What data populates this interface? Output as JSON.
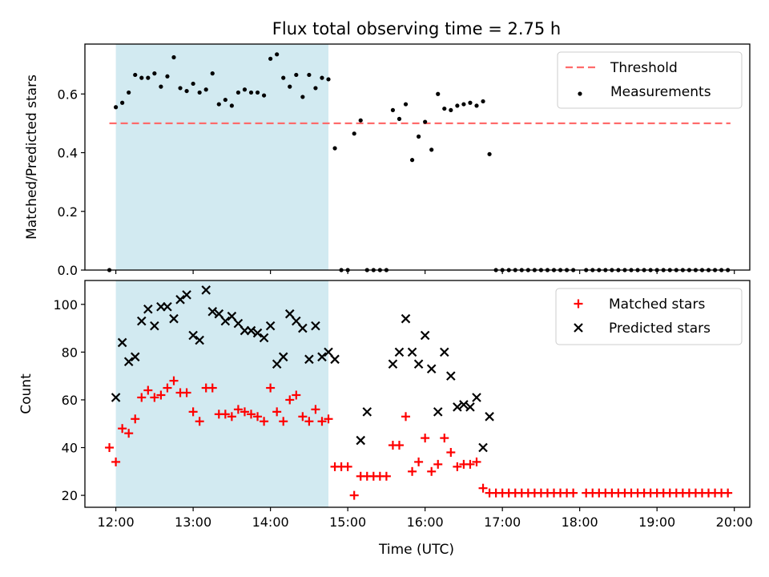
{
  "title": "Flux total observing time = 2.75 h",
  "colors": {
    "shade": "#add8e6",
    "threshold": "#ff6b6b",
    "measurements": "#000000",
    "matched": "#ff0000",
    "predicted": "#000000"
  },
  "chart_data": [
    {
      "type": "scatter",
      "ylabel": "Matched/Predicted stars",
      "ylim": [
        0,
        0.77
      ],
      "yticks": [
        0.0,
        0.2,
        0.4,
        0.6
      ],
      "ytick_labels": [
        "0.0",
        "0.2",
        "0.4",
        "0.6"
      ],
      "xlim": [
        "11:36",
        "20:12"
      ],
      "xticks": [
        "12:00",
        "13:00",
        "14:00",
        "15:00",
        "16:00",
        "17:00",
        "18:00",
        "19:00",
        "20:00"
      ],
      "shaded_span": [
        "12:00",
        "14:45"
      ],
      "legend": {
        "position": "top-right",
        "entries": [
          "Threshold",
          "Measurements"
        ]
      },
      "threshold": {
        "name": "Threshold",
        "y": 0.5,
        "x_range": [
          "11:55",
          "19:57"
        ],
        "style": "dashed"
      },
      "series": [
        {
          "name": "Measurements",
          "x": [
            "11:55",
            "12:00",
            "12:05",
            "12:10",
            "12:15",
            "12:20",
            "12:25",
            "12:30",
            "12:35",
            "12:40",
            "12:45",
            "12:50",
            "12:55",
            "13:00",
            "13:05",
            "13:10",
            "13:15",
            "13:20",
            "13:25",
            "13:30",
            "13:35",
            "13:40",
            "13:45",
            "13:50",
            "13:55",
            "14:00",
            "14:05",
            "14:10",
            "14:15",
            "14:20",
            "14:25",
            "14:30",
            "14:35",
            "14:40",
            "14:45",
            "14:50",
            "14:55",
            "15:00",
            "15:05",
            "15:10",
            "15:15",
            "15:20",
            "15:25",
            "15:30",
            "15:35",
            "15:40",
            "15:45",
            "15:50",
            "15:55",
            "16:00",
            "16:05",
            "16:10",
            "16:15",
            "16:20",
            "16:25",
            "16:30",
            "16:35",
            "16:40",
            "16:45",
            "16:50",
            "16:55",
            "17:00",
            "17:05",
            "17:10",
            "17:15",
            "17:20",
            "17:25",
            "17:30",
            "17:35",
            "17:40",
            "17:45",
            "17:50",
            "17:55",
            "18:05",
            "18:10",
            "18:15",
            "18:20",
            "18:25",
            "18:30",
            "18:35",
            "18:40",
            "18:45",
            "18:50",
            "18:55",
            "19:00",
            "19:05",
            "19:10",
            "19:15",
            "19:20",
            "19:25",
            "19:30",
            "19:35",
            "19:40",
            "19:45",
            "19:50",
            "19:55"
          ],
          "y": [
            0,
            0.555,
            0.57,
            0.605,
            0.665,
            0.655,
            0.655,
            0.67,
            0.625,
            0.66,
            0.725,
            0.62,
            0.61,
            0.635,
            0.605,
            0.615,
            0.67,
            0.565,
            0.58,
            0.56,
            0.605,
            0.615,
            0.605,
            0.605,
            0.595,
            0.72,
            0.735,
            0.655,
            0.625,
            0.665,
            0.59,
            0.665,
            0.62,
            0.655,
            0.65,
            0.415,
            0,
            0,
            0.465,
            0.51,
            0,
            0,
            0,
            0,
            0.545,
            0.515,
            0.565,
            0.375,
            0.455,
            0.505,
            0.41,
            0.6,
            0.55,
            0.545,
            0.56,
            0.565,
            0.57,
            0.56,
            0.575,
            0.395,
            0,
            0,
            0,
            0,
            0,
            0,
            0,
            0,
            0,
            0,
            0,
            0,
            0,
            0,
            0,
            0,
            0,
            0,
            0,
            0,
            0,
            0,
            0,
            0,
            0,
            0,
            0,
            0,
            0,
            0,
            0,
            0,
            0,
            0,
            0,
            0
          ]
        }
      ]
    },
    {
      "type": "scatter",
      "ylabel": "Count",
      "xlabel": "Time (UTC)",
      "ylim": [
        15,
        110
      ],
      "yticks": [
        20,
        40,
        60,
        80,
        100
      ],
      "ytick_labels": [
        "20",
        "40",
        "60",
        "80",
        "100"
      ],
      "xlim": [
        "11:36",
        "20:12"
      ],
      "xticks": [
        "12:00",
        "13:00",
        "14:00",
        "15:00",
        "16:00",
        "17:00",
        "18:00",
        "19:00",
        "20:00"
      ],
      "shaded_span": [
        "12:00",
        "14:45"
      ],
      "legend": {
        "position": "top-right",
        "entries": [
          "Matched stars",
          "Predicted stars"
        ]
      },
      "series": [
        {
          "name": "Matched stars",
          "marker": "plus",
          "x": [
            "11:55",
            "12:00",
            "12:05",
            "12:10",
            "12:15",
            "12:20",
            "12:25",
            "12:30",
            "12:35",
            "12:40",
            "12:45",
            "12:50",
            "12:55",
            "13:00",
            "13:05",
            "13:10",
            "13:15",
            "13:20",
            "13:25",
            "13:30",
            "13:35",
            "13:40",
            "13:45",
            "13:50",
            "13:55",
            "14:00",
            "14:05",
            "14:10",
            "14:15",
            "14:20",
            "14:25",
            "14:30",
            "14:35",
            "14:40",
            "14:45",
            "14:50",
            "14:55",
            "15:00",
            "15:05",
            "15:10",
            "15:15",
            "15:20",
            "15:25",
            "15:30",
            "15:35",
            "15:40",
            "15:45",
            "15:50",
            "15:55",
            "16:00",
            "16:05",
            "16:10",
            "16:15",
            "16:20",
            "16:25",
            "16:30",
            "16:35",
            "16:40",
            "16:45",
            "16:50",
            "16:55",
            "17:00",
            "17:05",
            "17:10",
            "17:15",
            "17:20",
            "17:25",
            "17:30",
            "17:35",
            "17:40",
            "17:45",
            "17:50",
            "17:55",
            "18:05",
            "18:10",
            "18:15",
            "18:20",
            "18:25",
            "18:30",
            "18:35",
            "18:40",
            "18:45",
            "18:50",
            "18:55",
            "19:00",
            "19:05",
            "19:10",
            "19:15",
            "19:20",
            "19:25",
            "19:30",
            "19:35",
            "19:40",
            "19:45",
            "19:50",
            "19:55"
          ],
          "y": [
            40,
            34,
            48,
            46,
            52,
            61,
            64,
            61,
            62,
            65,
            68,
            63,
            63,
            55,
            51,
            65,
            65,
            54,
            54,
            53,
            56,
            55,
            54,
            53,
            51,
            65,
            55,
            51,
            60,
            62,
            53,
            51,
            56,
            51,
            52,
            32,
            32,
            32,
            20,
            28,
            28,
            28,
            28,
            28,
            41,
            41,
            53,
            30,
            34,
            44,
            30,
            33,
            44,
            38,
            32,
            33,
            33,
            34,
            23,
            21,
            21,
            21,
            21,
            21,
            21,
            21,
            21,
            21,
            21,
            21,
            21,
            21,
            21,
            21,
            21,
            21,
            21,
            21,
            21,
            21,
            21,
            21,
            21,
            21,
            21,
            21,
            21,
            21,
            21,
            21,
            21,
            21,
            21,
            21,
            21,
            21
          ]
        },
        {
          "name": "Predicted stars",
          "marker": "x",
          "x": [
            "12:00",
            "12:05",
            "12:10",
            "12:15",
            "12:20",
            "12:25",
            "12:30",
            "12:35",
            "12:40",
            "12:45",
            "12:50",
            "12:55",
            "13:00",
            "13:05",
            "13:10",
            "13:15",
            "13:20",
            "13:25",
            "13:30",
            "13:35",
            "13:40",
            "13:45",
            "13:50",
            "13:55",
            "14:00",
            "14:05",
            "14:10",
            "14:15",
            "14:20",
            "14:25",
            "14:30",
            "14:35",
            "14:40",
            "14:45",
            "14:50",
            "15:10",
            "15:15",
            "15:35",
            "15:40",
            "15:45",
            "15:50",
            "15:55",
            "16:00",
            "16:05",
            "16:10",
            "16:15",
            "16:20",
            "16:25",
            "16:30",
            "16:35",
            "16:40",
            "16:45",
            "16:50"
          ],
          "y": [
            61,
            84,
            76,
            78,
            93,
            98,
            91,
            99,
            99,
            94,
            102,
            104,
            87,
            85,
            106,
            97,
            96,
            93,
            95,
            92,
            89,
            89,
            88,
            86,
            91,
            75,
            78,
            96,
            93,
            90,
            77,
            91,
            78,
            80,
            77,
            43,
            55,
            75,
            80,
            94,
            80,
            75,
            87,
            73,
            55,
            80,
            70,
            57,
            58,
            57,
            61,
            40,
            53
          ]
        }
      ]
    }
  ]
}
